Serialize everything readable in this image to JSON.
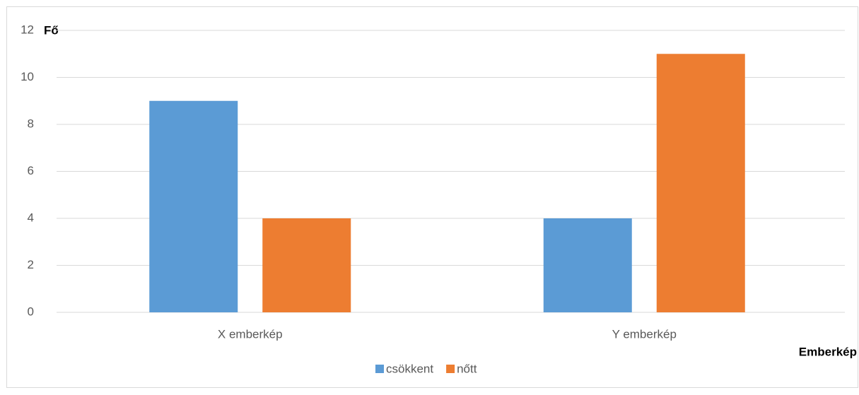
{
  "chart_data": {
    "type": "bar",
    "x_label": "Emberkép",
    "y_label": "Fő",
    "categories": [
      "X emberkép",
      "Y emberkép"
    ],
    "series": [
      {
        "name": "csökkent",
        "color": "#5b9bd5",
        "values": [
          9,
          4
        ]
      },
      {
        "name": "nőtt",
        "color": "#ed7d31",
        "values": [
          4,
          11
        ]
      }
    ],
    "ylim": [
      0,
      12
    ],
    "yticks": [
      0,
      2,
      4,
      6,
      8,
      10,
      12
    ],
    "grid": true,
    "legend": "bottom"
  }
}
